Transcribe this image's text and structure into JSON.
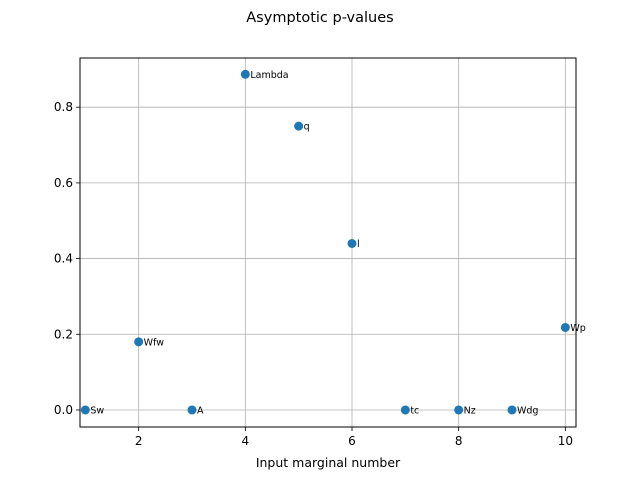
{
  "chart_data": {
    "type": "scatter",
    "title": "Asymptotic p-values",
    "xlabel": "Input marginal number",
    "ylabel": "",
    "xlim": [
      0.9,
      10.2
    ],
    "ylim": [
      -0.045,
      0.93
    ],
    "xticks": [
      2,
      4,
      6,
      8,
      10
    ],
    "yticks": [
      0.0,
      0.2,
      0.4,
      0.6,
      0.8
    ],
    "xtick_labels": [
      "2",
      "4",
      "6",
      "8",
      "10"
    ],
    "ytick_labels": [
      "0.0",
      "0.2",
      "0.4",
      "0.6",
      "0.8"
    ],
    "grid": true,
    "marker_color": "#1f77b4",
    "points": [
      {
        "x": 1,
        "y": 0.0,
        "label": "Sw"
      },
      {
        "x": 2,
        "y": 0.18,
        "label": "Wfw"
      },
      {
        "x": 3,
        "y": 0.0,
        "label": "A"
      },
      {
        "x": 4,
        "y": 0.887,
        "label": "Lambda"
      },
      {
        "x": 5,
        "y": 0.75,
        "label": "q"
      },
      {
        "x": 6,
        "y": 0.44,
        "label": "l"
      },
      {
        "x": 7,
        "y": 0.0,
        "label": "tc"
      },
      {
        "x": 8,
        "y": 0.0,
        "label": "Nz"
      },
      {
        "x": 9,
        "y": 0.0,
        "label": "Wdg"
      },
      {
        "x": 10,
        "y": 0.218,
        "label": "Wp"
      }
    ]
  }
}
